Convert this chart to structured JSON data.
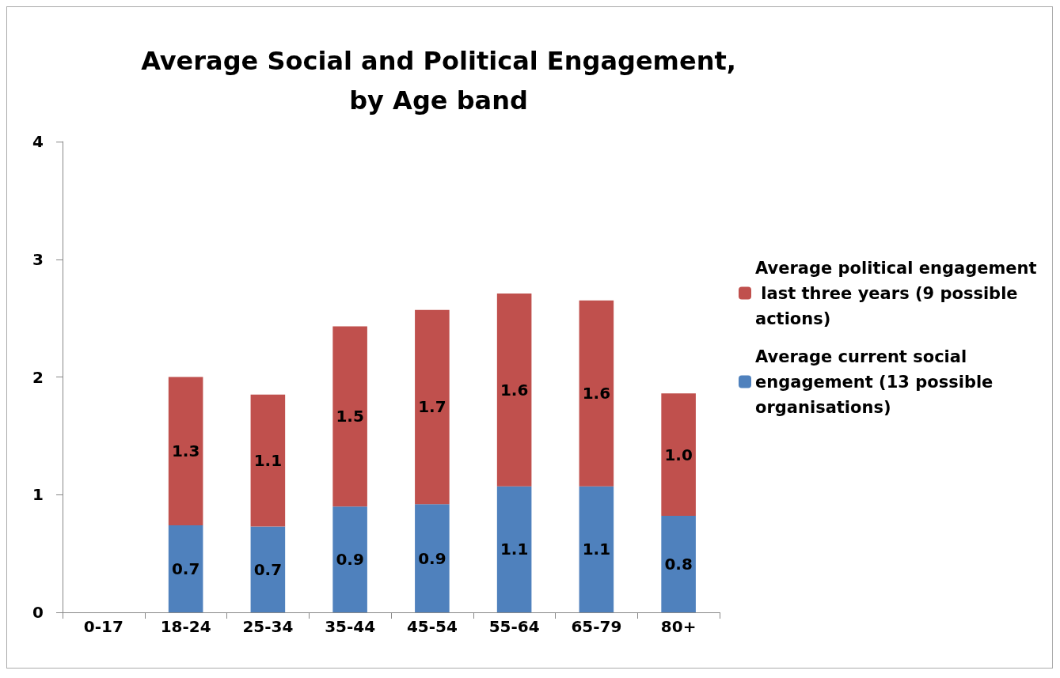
{
  "chart_data": {
    "type": "bar",
    "stacked": true,
    "title": "Average Social and Political Engagement,\nby Age band",
    "categories": [
      "0-17",
      "18-24",
      "25-34",
      "35-44",
      "45-54",
      "55-64",
      "65-79",
      "80+"
    ],
    "series": [
      {
        "name": "Average current social engagement (13 possible organisations)",
        "color": "#4f81bd",
        "values": [
          null,
          0.74,
          0.73,
          0.9,
          0.92,
          1.07,
          1.07,
          0.82
        ],
        "value_labels": [
          null,
          "0.7",
          "0.7",
          "0.9",
          "0.9",
          "1.1",
          "1.1",
          "0.8"
        ]
      },
      {
        "name": "Average political engagement last three years (9 possible actions)",
        "color": "#c0504d",
        "values": [
          null,
          1.26,
          1.12,
          1.53,
          1.65,
          1.64,
          1.58,
          1.04
        ],
        "value_labels": [
          null,
          "1.3",
          "1.1",
          "1.5",
          "1.7",
          "1.6",
          "1.6",
          "1.0"
        ]
      }
    ],
    "ylim": [
      0,
      4
    ],
    "yticks": [
      0,
      1,
      2,
      3,
      4
    ],
    "grid": false,
    "legend": "right"
  }
}
